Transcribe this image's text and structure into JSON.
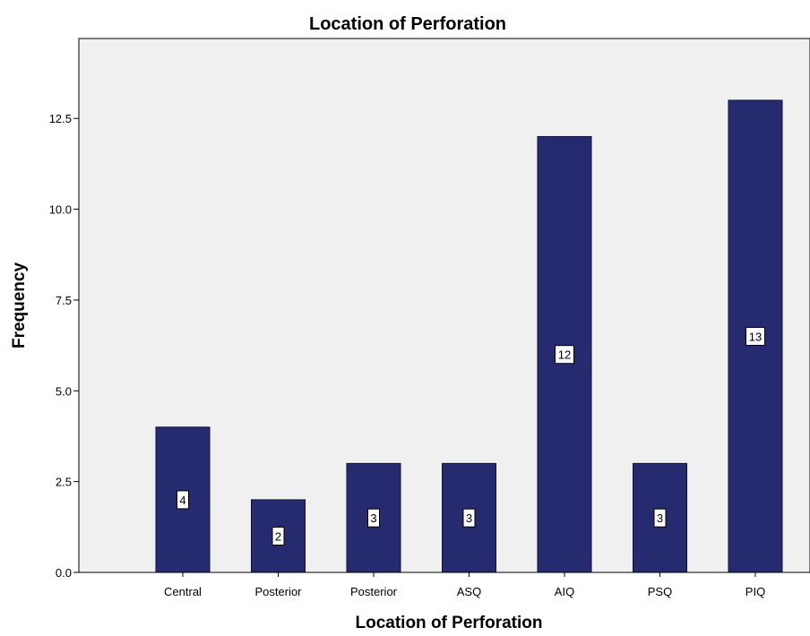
{
  "chart_data": {
    "type": "bar",
    "title": "Location of Perforation",
    "xlabel": "Location of Perforation",
    "ylabel": "Frequency",
    "categories": [
      "Central",
      "Posterior",
      "Posterior",
      "ASQ",
      "AIQ",
      "PSQ",
      "PIQ"
    ],
    "values": [
      4,
      2,
      3,
      3,
      12,
      3,
      13
    ],
    "data_labels": [
      "4",
      "2",
      "3",
      "3",
      "12",
      "3",
      "13"
    ],
    "yticks": [
      0,
      2.5,
      5,
      7.5,
      10,
      12.5
    ],
    "ytick_labels": [
      "0.0",
      "2.5",
      "5.0",
      "7.5",
      "10.0",
      "12.5"
    ],
    "ylim": [
      0,
      14.7
    ],
    "grid": false,
    "legend": "none",
    "colors": {
      "bar_fill": "#262A6E",
      "bar_stroke": "#10123E",
      "plot_background": "#F0F0F0",
      "axis": "#000000",
      "label_box": "#FFFFFF"
    }
  }
}
